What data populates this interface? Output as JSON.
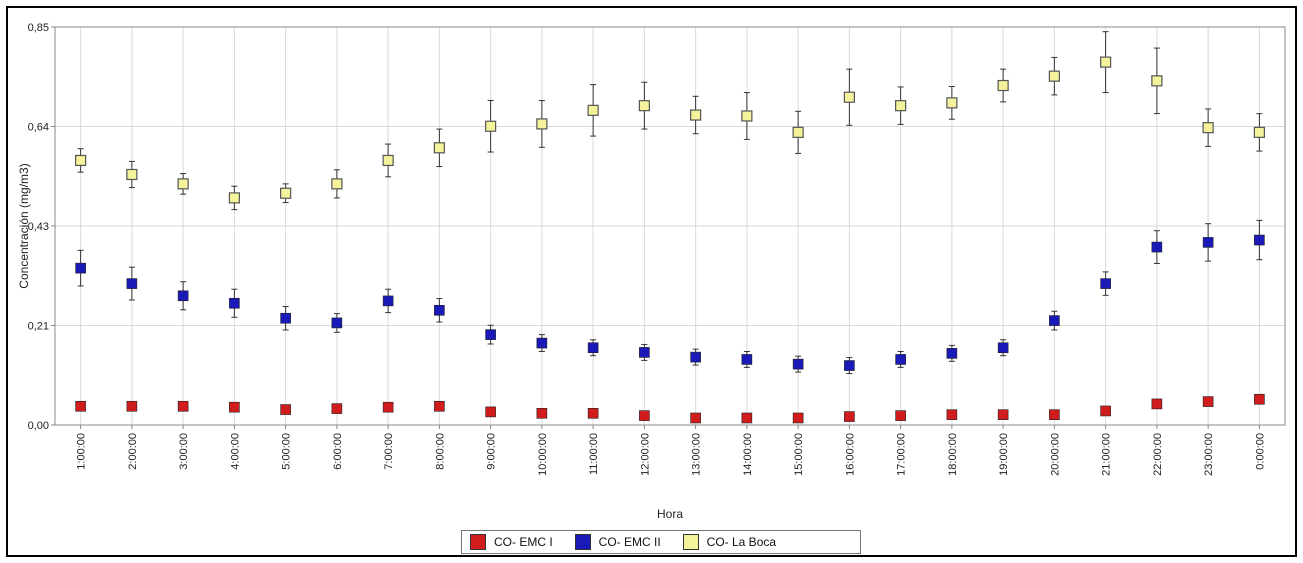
{
  "chart_data": {
    "type": "scatter",
    "xlabel": "Hora",
    "ylabel": "Concentración (mg/m3)",
    "ylim": [
      0,
      0.85
    ],
    "yticks": [
      "0,00",
      "0,21",
      "0,43",
      "0,64",
      "0,85"
    ],
    "ytick_values": [
      0,
      0.2125,
      0.425,
      0.6375,
      0.85
    ],
    "grid": true,
    "legend_position": "bottom-center",
    "categories": [
      "1:00:00",
      "2:00:00",
      "3:00:00",
      "4:00:00",
      "5:00:00",
      "6:00:00",
      "7:00:00",
      "8:00:00",
      "9:00:00",
      "10:00:00",
      "11:00:00",
      "12:00:00",
      "13:00:00",
      "14:00:00",
      "15:00:00",
      "16:00:00",
      "17:00:00",
      "18:00:00",
      "19:00:00",
      "20:00:00",
      "21:00:00",
      "22:00:00",
      "23:00:00",
      "0:00:00"
    ],
    "series": [
      {
        "name": "CO- EMC I",
        "color": "#d01c1c",
        "marker": "filled-square",
        "values": [
          0.04,
          0.04,
          0.04,
          0.038,
          0.033,
          0.035,
          0.038,
          0.04,
          0.028,
          0.025,
          0.025,
          0.02,
          0.015,
          0.015,
          0.015,
          0.018,
          0.02,
          0.022,
          0.022,
          0.022,
          0.03,
          0.045,
          0.05,
          0.055
        ],
        "errors": [
          0.006,
          0.006,
          0.006,
          0.006,
          0.005,
          0.005,
          0.01,
          0.006,
          0.005,
          0.005,
          0.005,
          0.005,
          0.004,
          0.004,
          0.004,
          0.004,
          0.004,
          0.004,
          0.004,
          0.004,
          0.005,
          0.006,
          0.008,
          0.01
        ]
      },
      {
        "name": "CO- EMC II",
        "color": "#1a1ab8",
        "marker": "filled-square",
        "values": [
          0.335,
          0.302,
          0.276,
          0.26,
          0.228,
          0.218,
          0.265,
          0.245,
          0.193,
          0.175,
          0.165,
          0.155,
          0.145,
          0.14,
          0.13,
          0.127,
          0.14,
          0.153,
          0.165,
          0.223,
          0.302,
          0.38,
          0.39,
          0.395
        ],
        "errors": [
          0.038,
          0.035,
          0.03,
          0.03,
          0.025,
          0.02,
          0.025,
          0.025,
          0.02,
          0.018,
          0.017,
          0.017,
          0.017,
          0.017,
          0.017,
          0.017,
          0.017,
          0.017,
          0.017,
          0.02,
          0.025,
          0.035,
          0.04,
          0.042
        ]
      },
      {
        "name": "CO- La Boca",
        "color": "#f4f29a",
        "marker": "hollow-square",
        "values": [
          0.565,
          0.535,
          0.515,
          0.485,
          0.495,
          0.515,
          0.565,
          0.592,
          0.638,
          0.643,
          0.672,
          0.682,
          0.662,
          0.66,
          0.625,
          0.7,
          0.682,
          0.688,
          0.725,
          0.745,
          0.775,
          0.735,
          0.635,
          0.625
        ],
        "errors": [
          0.025,
          0.028,
          0.022,
          0.025,
          0.02,
          0.03,
          0.035,
          0.04,
          0.055,
          0.05,
          0.055,
          0.05,
          0.04,
          0.05,
          0.045,
          0.06,
          0.04,
          0.035,
          0.035,
          0.04,
          0.065,
          0.07,
          0.04,
          0.04
        ]
      }
    ]
  }
}
